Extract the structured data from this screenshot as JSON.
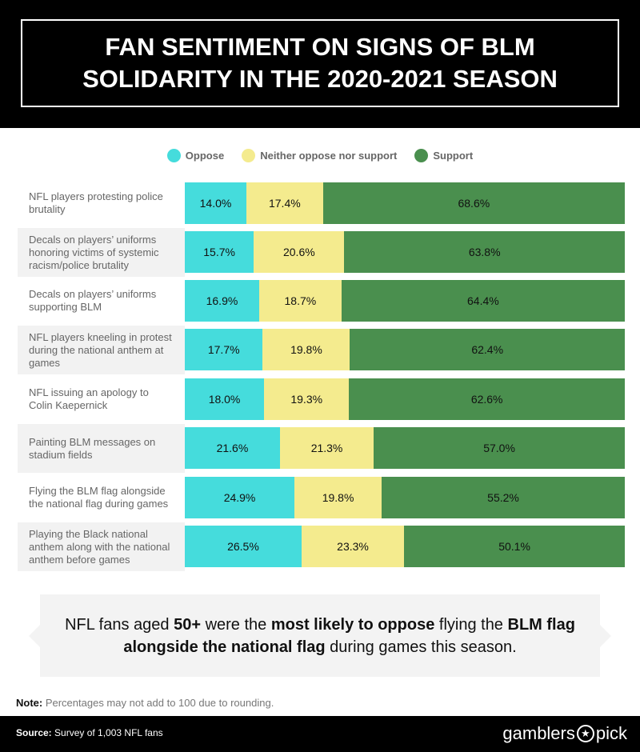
{
  "title": "FAN SENTIMENT ON SIGNS OF BLM SOLIDARITY IN THE 2020-2021 SEASON",
  "chart_data": {
    "type": "bar",
    "stacked": true,
    "orientation": "horizontal",
    "legend_placement": "top",
    "categories": [
      "NFL players protesting police brutality",
      "Decals on players’ uniforms honoring victims of systemic racism/police brutality",
      "Decals on players’ uniforms supporting BLM",
      "NFL players kneeling in protest during the national anthem at games",
      "NFL issuing an apology to Colin Kaepernick",
      "Painting BLM messages on stadium fields",
      "Flying the BLM flag alongside the national flag during games",
      "Playing the Black national anthem along with the national anthem before games"
    ],
    "series": [
      {
        "name": "Oppose",
        "color": "#45dcdc",
        "values": [
          14.0,
          15.7,
          16.9,
          17.7,
          18.0,
          21.6,
          24.9,
          26.5
        ]
      },
      {
        "name": "Neither oppose nor support",
        "color": "#f4eb8e",
        "values": [
          17.4,
          20.6,
          18.7,
          19.8,
          19.3,
          21.3,
          19.8,
          23.3
        ]
      },
      {
        "name": "Support",
        "color": "#4a8f4e",
        "values": [
          68.6,
          63.8,
          64.4,
          62.4,
          62.6,
          57.0,
          55.2,
          50.1
        ]
      }
    ]
  },
  "callout": {
    "t1": "NFL fans aged ",
    "b1": "50+",
    "t2": " were the ",
    "b2": "most likely to oppose",
    "t3": " flying the ",
    "b3": "BLM flag alongside the national flag",
    "t4": " during games this season."
  },
  "note": {
    "label": "Note:",
    "text": " Percentages may not add to 100 due to rounding."
  },
  "footer": {
    "source_label": "Source:",
    "source_text": " Survey of 1,003 NFL fans",
    "logo_left": "gamblers",
    "logo_right": "pick"
  }
}
